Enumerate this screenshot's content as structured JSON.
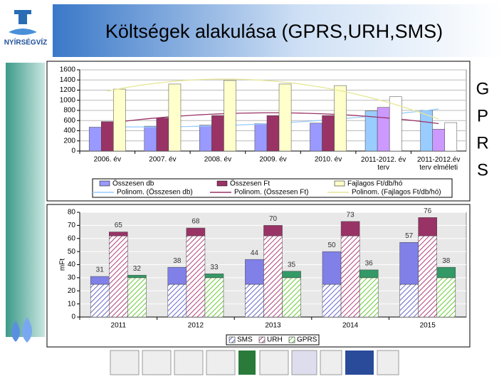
{
  "title": "Költségek alakulása (GPRS,URH,SMS)",
  "logo": "NYÍRSÉGVÍZ",
  "side_label": [
    "G",
    "P",
    "R",
    "S"
  ],
  "chart_data": [
    {
      "type": "bar",
      "categories": [
        "2006. év",
        "2007. év",
        "2008. év",
        "2009. év",
        "2010. év",
        "2011-2012. év\nterv",
        "2011-2012.év\nterv elméleti"
      ],
      "series": [
        {
          "name": "Összesen db",
          "color": "#9999ff",
          "colors": [
            "#9999ff",
            "#9999ff",
            "#9999ff",
            "#9999ff",
            "#9999ff",
            "#99ccff",
            "#99ccff"
          ],
          "values": [
            470,
            490,
            510,
            540,
            550,
            790,
            800
          ],
          "trend_name": "Polinom. (Összesen db)",
          "trend_color": "#99ccff"
        },
        {
          "name": "Összesen Ft",
          "color": "#993366",
          "colors": [
            "#993366",
            "#993366",
            "#993366",
            "#993366",
            "#993366",
            "#cc99ff",
            "#cc99ff"
          ],
          "values": [
            580,
            650,
            700,
            700,
            700,
            860,
            430
          ],
          "trend_name": "Polinom. (Összesen Ft)",
          "trend_color": "#993366"
        },
        {
          "name": "Fajlagos Ft/db/hó",
          "color": "#ffffcc",
          "colors": [
            "#ffffcc",
            "#ffffcc",
            "#ffffcc",
            "#ffffcc",
            "#ffffcc",
            "#ffffff",
            "#ffffff"
          ],
          "values": [
            1220,
            1320,
            1390,
            1320,
            1290,
            1070,
            560
          ],
          "trend_name": "Polinom. (Fajlagos Ft/db/hó)",
          "trend_color": "#e6e699"
        }
      ],
      "ylim": [
        0,
        1600
      ],
      "yticks": [
        0,
        200,
        400,
        600,
        800,
        1000,
        1200,
        1400,
        1600
      ],
      "grid": true
    },
    {
      "type": "bar",
      "y_label": "mFt",
      "categories": [
        "2011",
        "2012",
        "2013",
        "2014",
        "2015"
      ],
      "series": [
        {
          "name": "SMS",
          "color": "#8080e8",
          "base": 25,
          "base_color": "#6666cc",
          "values": [
            31,
            38,
            44,
            50,
            57
          ]
        },
        {
          "name": "URH",
          "color": "#993366",
          "base": 62,
          "base_color": "#b0407a",
          "values": [
            65,
            68,
            70,
            73,
            76
          ]
        },
        {
          "name": "GPRS",
          "color": "#339966",
          "base": 30,
          "base_color": "#66cc33",
          "values": [
            32,
            33,
            35,
            36,
            38
          ]
        }
      ],
      "ylim": [
        0,
        80
      ],
      "yticks": [
        0,
        10,
        20,
        30,
        40,
        50,
        60,
        70,
        80
      ],
      "grid": true
    }
  ]
}
